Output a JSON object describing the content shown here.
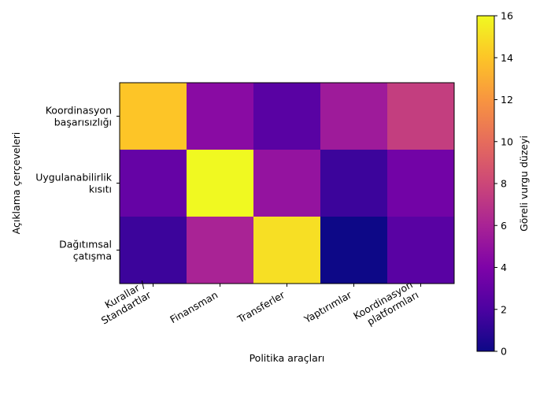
{
  "chart_data": {
    "type": "heatmap",
    "title": "",
    "xlabel": "Politika araçları",
    "ylabel": "Açıklama çerçeveleri",
    "x_categories": [
      [
        "Kurallar /",
        "Standartlar"
      ],
      [
        "Finansman"
      ],
      [
        "Transferler"
      ],
      [
        "Yaptırımlar"
      ],
      [
        "Koordinasyon",
        "platformları"
      ]
    ],
    "y_categories": [
      [
        "Koordinasyon",
        "başarısızlığı"
      ],
      [
        "Uygulanabilirlik",
        "kısıtı"
      ],
      [
        "Dağıtımsal",
        "çatışma"
      ]
    ],
    "values": [
      [
        14,
        4.5,
        2.5,
        5.5,
        7.5
      ],
      [
        3,
        16,
        5,
        1.5,
        3.5
      ],
      [
        1.5,
        6,
        15,
        0,
        2.5
      ]
    ],
    "colorbar": {
      "label": "Göreli vurgu düzeyi",
      "range": [
        0,
        16
      ],
      "ticks": [
        "0",
        "2",
        "4",
        "6",
        "8",
        "10",
        "12",
        "14",
        "16"
      ],
      "colormap": "plasma"
    }
  }
}
